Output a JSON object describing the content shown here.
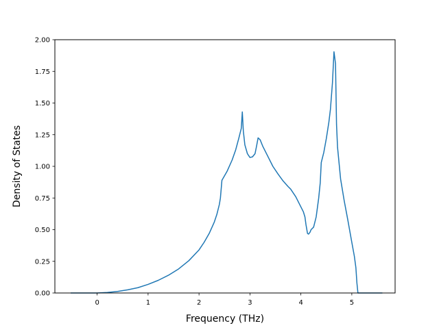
{
  "chart_data": {
    "type": "line",
    "title": "",
    "xlabel": "Frequency (THz)",
    "ylabel": "Density of States",
    "xlim": [
      -0.83,
      5.85
    ],
    "ylim": [
      0.0,
      2.0
    ],
    "xticks": [
      0,
      1,
      2,
      3,
      4,
      5
    ],
    "xtick_labels": [
      "0",
      "1",
      "2",
      "3",
      "4",
      "5"
    ],
    "yticks": [
      0.0,
      0.25,
      0.5,
      0.75,
      1.0,
      1.25,
      1.5,
      1.75,
      2.0
    ],
    "ytick_labels": [
      "0.00",
      "0.25",
      "0.50",
      "0.75",
      "1.00",
      "1.25",
      "1.50",
      "1.75",
      "2.00"
    ],
    "grid": false,
    "legend": "none",
    "line_color": "#1f77b4",
    "series": [
      {
        "x": [
          -0.52,
          -0.3,
          0.0,
          0.2,
          0.4,
          0.6,
          0.8,
          1.0,
          1.2,
          1.4,
          1.6,
          1.8,
          2.0,
          2.1,
          2.2,
          2.3,
          2.35,
          2.4,
          2.42,
          2.45,
          2.55,
          2.65,
          2.72,
          2.78,
          2.83,
          2.85,
          2.87,
          2.9,
          2.95,
          3.0,
          3.05,
          3.1,
          3.13,
          3.16,
          3.2,
          3.25,
          3.35,
          3.45,
          3.55,
          3.65,
          3.75,
          3.8,
          3.9,
          4.0,
          4.05,
          4.08,
          4.1,
          4.13,
          4.15,
          4.18,
          4.2,
          4.25,
          4.3,
          4.35,
          4.38,
          4.4,
          4.45,
          4.5,
          4.55,
          4.58,
          4.62,
          4.65,
          4.68,
          4.7,
          4.72,
          4.78,
          4.85,
          4.92,
          5.0,
          5.05,
          5.08,
          5.1,
          5.12,
          5.3,
          5.6
        ],
        "y": [
          0.0,
          0.0,
          0.0,
          0.004,
          0.012,
          0.025,
          0.042,
          0.068,
          0.1,
          0.14,
          0.19,
          0.255,
          0.34,
          0.4,
          0.47,
          0.56,
          0.62,
          0.7,
          0.75,
          0.89,
          0.96,
          1.05,
          1.13,
          1.22,
          1.3,
          1.43,
          1.28,
          1.17,
          1.1,
          1.07,
          1.075,
          1.1,
          1.16,
          1.225,
          1.21,
          1.16,
          1.08,
          1.0,
          0.94,
          0.885,
          0.84,
          0.82,
          0.76,
          0.68,
          0.64,
          0.6,
          0.54,
          0.47,
          0.465,
          0.48,
          0.5,
          0.52,
          0.6,
          0.75,
          0.87,
          1.03,
          1.11,
          1.22,
          1.35,
          1.45,
          1.66,
          1.905,
          1.81,
          1.33,
          1.15,
          0.9,
          0.73,
          0.58,
          0.4,
          0.29,
          0.2,
          0.08,
          0.0,
          0.0,
          0.0
        ]
      }
    ]
  }
}
